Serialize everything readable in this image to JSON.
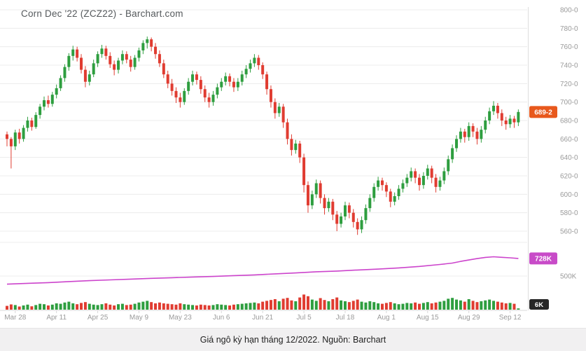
{
  "title": "Corn Dec '22 (ZCZ22) - Barchart.com",
  "caption": "Giá ngô kỳ hạn tháng 12/2022. Nguồn: Barchart",
  "colors": {
    "up": "#2e9e3f",
    "down": "#e03c31",
    "oi_line": "#cc44cc",
    "price_badge": "#e8581c",
    "oi_badge": "#c84bc8",
    "vol_badge": "#262626",
    "grid": "#ececec",
    "divider": "#d9d9d9",
    "axis_text": "#9a9a9a",
    "badge_text": "#ffffff"
  },
  "badges": {
    "last_price_label": "689-2",
    "last_price_value": 689.25,
    "open_interest_label": "728K",
    "open_interest_value": 728,
    "volume_label": "6K",
    "volume_value": 6
  },
  "chart_data": {
    "type": "candlestick",
    "title": "Corn Dec '22 (ZCZ22) - Barchart.com",
    "symbol": "ZCZ22",
    "price_unit": "cents per bushel (eighths)",
    "ylim": [
      560,
      800
    ],
    "grid": true,
    "y_ticks": [
      800,
      780,
      760,
      740,
      720,
      700,
      680,
      660,
      640,
      620,
      600,
      580,
      560
    ],
    "y_tick_labels": [
      "800-0",
      "780-0",
      "760-0",
      "740-0",
      "720-0",
      "700-0",
      "680-0",
      "660-0",
      "640-0",
      "620-0",
      "600-0",
      "580-0",
      "560-0"
    ],
    "x_tick_labels": [
      "Mar 28",
      "Apr 11",
      "Apr 25",
      "May 9",
      "May 23",
      "Jun 6",
      "Jun 21",
      "Jul 5",
      "Jul 18",
      "Aug 1",
      "Aug 15",
      "Aug 29",
      "Sep 12"
    ],
    "x_tick_bar_indices": [
      2,
      12,
      22,
      32,
      42,
      52,
      62,
      72,
      82,
      92,
      102,
      112,
      122
    ],
    "last_price": 689.25,
    "candles_ohlc": [
      [
        665,
        668,
        652,
        660
      ],
      [
        660,
        662,
        628,
        652
      ],
      [
        652,
        670,
        648,
        667
      ],
      [
        667,
        671,
        655,
        660
      ],
      [
        660,
        675,
        657,
        672
      ],
      [
        672,
        684,
        668,
        680
      ],
      [
        680,
        683,
        669,
        673
      ],
      [
        673,
        689,
        671,
        686
      ],
      [
        686,
        698,
        682,
        695
      ],
      [
        695,
        706,
        691,
        702
      ],
      [
        702,
        707,
        694,
        698
      ],
      [
        698,
        711,
        695,
        708
      ],
      [
        708,
        719,
        704,
        715
      ],
      [
        715,
        729,
        712,
        726
      ],
      [
        726,
        741,
        722,
        738
      ],
      [
        738,
        753,
        734,
        750
      ],
      [
        750,
        761,
        745,
        757
      ],
      [
        757,
        760,
        744,
        748
      ],
      [
        748,
        752,
        731,
        735
      ],
      [
        735,
        739,
        716,
        722
      ],
      [
        722,
        734,
        718,
        730
      ],
      [
        730,
        746,
        727,
        742
      ],
      [
        742,
        755,
        738,
        752
      ],
      [
        752,
        762,
        748,
        758
      ],
      [
        758,
        761,
        746,
        750
      ],
      [
        750,
        754,
        737,
        741
      ],
      [
        741,
        745,
        729,
        735
      ],
      [
        735,
        748,
        731,
        745
      ],
      [
        745,
        756,
        741,
        752
      ],
      [
        752,
        755,
        742,
        746
      ],
      [
        746,
        750,
        733,
        738
      ],
      [
        738,
        751,
        735,
        748
      ],
      [
        748,
        759,
        744,
        756
      ],
      [
        756,
        767,
        752,
        764
      ],
      [
        764,
        771,
        758,
        768
      ],
      [
        768,
        770,
        755,
        760
      ],
      [
        760,
        764,
        747,
        752
      ],
      [
        752,
        756,
        738,
        742
      ],
      [
        742,
        746,
        726,
        730
      ],
      [
        730,
        734,
        715,
        720
      ],
      [
        720,
        725,
        707,
        712
      ],
      [
        712,
        716,
        699,
        705
      ],
      [
        705,
        710,
        694,
        700
      ],
      [
        700,
        715,
        697,
        712
      ],
      [
        712,
        726,
        708,
        722
      ],
      [
        722,
        734,
        718,
        730
      ],
      [
        730,
        733,
        719,
        724
      ],
      [
        724,
        728,
        709,
        714
      ],
      [
        714,
        718,
        700,
        705
      ],
      [
        705,
        710,
        694,
        700
      ],
      [
        700,
        712,
        696,
        708
      ],
      [
        708,
        720,
        704,
        716
      ],
      [
        716,
        726,
        712,
        722
      ],
      [
        722,
        732,
        718,
        728
      ],
      [
        728,
        731,
        717,
        722
      ],
      [
        722,
        726,
        711,
        716
      ],
      [
        716,
        726,
        712,
        722
      ],
      [
        722,
        734,
        718,
        730
      ],
      [
        730,
        740,
        726,
        736
      ],
      [
        736,
        746,
        732,
        742
      ],
      [
        742,
        752,
        738,
        748
      ],
      [
        748,
        751,
        735,
        740
      ],
      [
        740,
        743,
        725,
        730
      ],
      [
        730,
        733,
        708,
        714
      ],
      [
        714,
        718,
        694,
        700
      ],
      [
        700,
        704,
        682,
        688
      ],
      [
        688,
        699,
        684,
        695
      ],
      [
        695,
        698,
        672,
        678
      ],
      [
        678,
        682,
        654,
        660
      ],
      [
        660,
        665,
        642,
        648
      ],
      [
        648,
        659,
        644,
        655
      ],
      [
        655,
        658,
        634,
        640
      ],
      [
        640,
        644,
        602,
        610
      ],
      [
        610,
        614,
        580,
        588
      ],
      [
        588,
        604,
        584,
        600
      ],
      [
        600,
        616,
        596,
        612
      ],
      [
        612,
        615,
        590,
        596
      ],
      [
        596,
        600,
        578,
        585
      ],
      [
        585,
        596,
        581,
        592
      ],
      [
        592,
        595,
        572,
        578
      ],
      [
        578,
        582,
        560,
        568
      ],
      [
        568,
        580,
        564,
        576
      ],
      [
        576,
        592,
        572,
        588
      ],
      [
        588,
        591,
        574,
        580
      ],
      [
        580,
        584,
        564,
        570
      ],
      [
        570,
        574,
        556,
        562
      ],
      [
        562,
        576,
        558,
        572
      ],
      [
        572,
        589,
        568,
        585
      ],
      [
        585,
        600,
        581,
        596
      ],
      [
        596,
        612,
        592,
        608
      ],
      [
        608,
        619,
        604,
        615
      ],
      [
        615,
        618,
        604,
        610
      ],
      [
        610,
        613,
        597,
        603
      ],
      [
        603,
        606,
        586,
        592
      ],
      [
        592,
        602,
        588,
        598
      ],
      [
        598,
        610,
        594,
        606
      ],
      [
        606,
        616,
        602,
        612
      ],
      [
        612,
        622,
        608,
        618
      ],
      [
        618,
        629,
        614,
        625
      ],
      [
        625,
        628,
        612,
        618
      ],
      [
        618,
        622,
        604,
        610
      ],
      [
        610,
        624,
        606,
        620
      ],
      [
        620,
        632,
        616,
        628
      ],
      [
        628,
        631,
        612,
        618
      ],
      [
        618,
        622,
        602,
        608
      ],
      [
        608,
        619,
        604,
        615
      ],
      [
        615,
        629,
        611,
        625
      ],
      [
        625,
        642,
        621,
        638
      ],
      [
        638,
        654,
        634,
        650
      ],
      [
        650,
        664,
        646,
        660
      ],
      [
        660,
        672,
        656,
        668
      ],
      [
        668,
        671,
        656,
        662
      ],
      [
        662,
        678,
        658,
        674
      ],
      [
        674,
        677,
        662,
        668
      ],
      [
        668,
        672,
        654,
        660
      ],
      [
        660,
        674,
        656,
        670
      ],
      [
        670,
        684,
        666,
        680
      ],
      [
        680,
        694,
        676,
        690
      ],
      [
        690,
        701,
        686,
        696
      ],
      [
        696,
        699,
        682,
        688
      ],
      [
        688,
        692,
        674,
        680
      ],
      [
        680,
        684,
        670,
        676
      ],
      [
        676,
        686,
        672,
        682
      ],
      [
        682,
        685,
        672,
        678
      ],
      [
        678,
        692,
        674,
        689.25
      ]
    ],
    "volume_unit": "K",
    "volume": [
      18,
      25,
      22,
      15,
      20,
      24,
      16,
      22,
      28,
      26,
      20,
      24,
      30,
      28,
      34,
      38,
      30,
      26,
      32,
      36,
      28,
      24,
      22,
      26,
      30,
      24,
      20,
      26,
      28,
      22,
      24,
      28,
      34,
      38,
      42,
      36,
      30,
      34,
      30,
      28,
      26,
      24,
      30,
      26,
      24,
      22,
      20,
      24,
      22,
      20,
      22,
      26,
      24,
      22,
      20,
      24,
      26,
      28,
      30,
      32,
      34,
      30,
      38,
      42,
      46,
      50,
      40,
      52,
      56,
      44,
      40,
      58,
      72,
      64,
      48,
      42,
      55,
      46,
      40,
      50,
      58,
      44,
      40,
      36,
      42,
      48,
      38,
      34,
      40,
      36,
      30,
      28,
      32,
      36,
      30,
      26,
      28,
      32,
      30,
      34,
      28,
      32,
      36,
      30,
      34,
      38,
      42,
      52,
      56,
      48,
      44,
      38,
      50,
      42,
      36,
      40,
      44,
      48,
      42,
      38,
      34,
      30,
      32,
      28,
      6
    ],
    "open_interest": {
      "unit": "K",
      "gridline_label": "500K",
      "gridline_value": 500,
      "points": [
        [
          0,
          395
        ],
        [
          5,
          405
        ],
        [
          10,
          415
        ],
        [
          15,
          428
        ],
        [
          20,
          440
        ],
        [
          25,
          450
        ],
        [
          30,
          460
        ],
        [
          35,
          470
        ],
        [
          40,
          478
        ],
        [
          45,
          487
        ],
        [
          50,
          495
        ],
        [
          55,
          505
        ],
        [
          60,
          515
        ],
        [
          65,
          528
        ],
        [
          70,
          540
        ],
        [
          75,
          555
        ],
        [
          80,
          565
        ],
        [
          85,
          578
        ],
        [
          90,
          590
        ],
        [
          95,
          605
        ],
        [
          100,
          625
        ],
        [
          105,
          650
        ],
        [
          108,
          668
        ],
        [
          110,
          690
        ],
        [
          112,
          708
        ],
        [
          114,
          726
        ],
        [
          116,
          742
        ],
        [
          118,
          750
        ],
        [
          120,
          743
        ],
        [
          122,
          736
        ],
        [
          124,
          728
        ]
      ]
    }
  }
}
